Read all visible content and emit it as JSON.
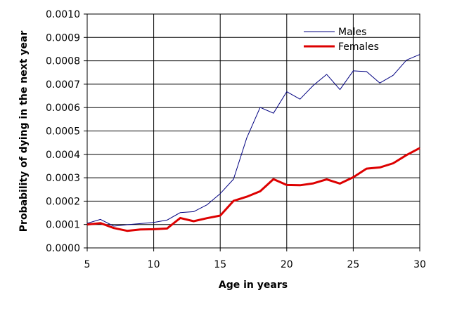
{
  "chart_data": {
    "type": "line",
    "xlabel": "Age in years",
    "ylabel": "Probability of dying in the next year",
    "xlim": [
      5,
      30
    ],
    "ylim": [
      0,
      0.001
    ],
    "x_ticks": [
      "5",
      "10",
      "15",
      "20",
      "25",
      "30"
    ],
    "y_ticks": [
      "0.0000",
      "0.0001",
      "0.0002",
      "0.0003",
      "0.0004",
      "0.0005",
      "0.0006",
      "0.0007",
      "0.0008",
      "0.0009",
      "0.0010"
    ],
    "grid": "vertical lines at x ticks, horizontal lines at y ticks",
    "legend_position": "top-right",
    "x": [
      5,
      6,
      7,
      8,
      9,
      10,
      11,
      12,
      13,
      14,
      15,
      16,
      17,
      18,
      19,
      20,
      21,
      22,
      23,
      24,
      25,
      26,
      27,
      28,
      29,
      30
    ],
    "series": [
      {
        "name": "Males",
        "color": "#000080",
        "values": [
          0.000105,
          0.000122,
          9.3e-05,
          9.9e-05,
          0.000104,
          0.000109,
          0.000119,
          0.000151,
          0.000155,
          0.000184,
          0.000232,
          0.000294,
          0.000471,
          0.000601,
          0.000576,
          0.000668,
          0.000636,
          0.000695,
          0.000742,
          0.000677,
          0.000757,
          0.000754,
          0.000705,
          0.000738,
          0.000803,
          0.000827
        ]
      },
      {
        "name": "Females",
        "color": "#dd0000",
        "values": [
          0.0001,
          0.000106,
          8.5e-05,
          7.3e-05,
          7.9e-05,
          8e-05,
          8.3e-05,
          0.000128,
          0.000114,
          0.000127,
          0.000138,
          0.000201,
          0.000219,
          0.000242,
          0.000294,
          0.000269,
          0.000268,
          0.000276,
          0.000293,
          0.000275,
          0.000302,
          0.000339,
          0.000344,
          0.000362,
          0.000397,
          0.000427
        ]
      }
    ]
  }
}
